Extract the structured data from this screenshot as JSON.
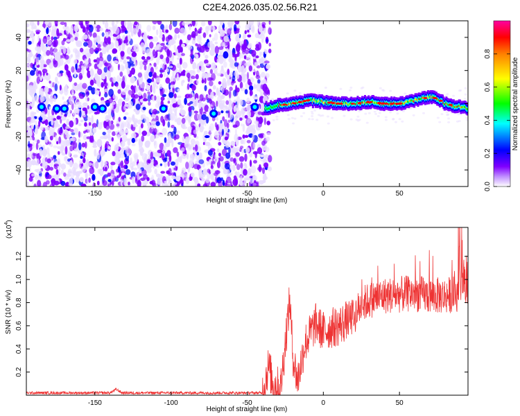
{
  "title": "C2E4.2026.035.02.56.R21",
  "chart_data": [
    {
      "type": "heatmap",
      "xlabel": "Height of straight line (km)",
      "ylabel": "Frequency (Hz)",
      "xlim": [
        -195,
        95
      ],
      "ylim": [
        -50,
        50
      ],
      "xticks": [
        -150,
        -100,
        -50,
        0,
        50
      ],
      "yticks": [
        -40,
        -20,
        0,
        20,
        40
      ],
      "colorbar": {
        "label": "Normalized spectral amplitude",
        "range": [
          0,
          1
        ],
        "ticks": [
          "0.0",
          "0.2",
          "0.4",
          "0.6",
          "0.8"
        ]
      },
      "colormap": [
        "#e8dcff",
        "#8000ff",
        "#0000ff",
        "#00ffff",
        "#00ff00",
        "#ffff00",
        "#ff8000",
        "#ff0000",
        "#ff00ff"
      ],
      "noise_region_end_km": -35,
      "signal_track": [
        [
          -38,
          -3
        ],
        [
          -30,
          -1
        ],
        [
          -20,
          0
        ],
        [
          -10,
          2
        ],
        [
          0,
          1
        ],
        [
          10,
          0
        ],
        [
          20,
          0
        ],
        [
          30,
          1
        ],
        [
          40,
          0
        ],
        [
          50,
          0
        ],
        [
          60,
          2
        ],
        [
          70,
          4
        ],
        [
          75,
          3
        ],
        [
          80,
          0
        ],
        [
          90,
          -2
        ],
        [
          95,
          -3
        ]
      ],
      "noise_blobs": [
        {
          "x": -185,
          "y": -2
        },
        {
          "x": -175,
          "y": -3
        },
        {
          "x": -170,
          "y": -3
        },
        {
          "x": -150,
          "y": -2
        },
        {
          "x": -145,
          "y": -3
        },
        {
          "x": -105,
          "y": -3
        },
        {
          "x": -72,
          "y": -6
        },
        {
          "x": -45,
          "y": -2
        }
      ]
    },
    {
      "type": "line",
      "xlabel": "Height of straight line (km)",
      "ylabel": "SNR (10 * v/v)",
      "multiplier": "(x10",
      "multiplier_exp": "4",
      "multiplier_close": ")",
      "xlim": [
        -195,
        95
      ],
      "ylim": [
        0,
        1.45
      ],
      "xticks": [
        -150,
        -100,
        -50,
        0,
        50
      ],
      "yticks": [
        "0.2",
        "0.4",
        "0.6",
        "0.8",
        "1.0",
        "1.2"
      ],
      "color": "#ee3333",
      "envelope": [
        [
          -195,
          0.02
        ],
        [
          -140,
          0.02
        ],
        [
          -136,
          0.05
        ],
        [
          -132,
          0.02
        ],
        [
          -40,
          0.02
        ],
        [
          -36,
          0.25
        ],
        [
          -33,
          0.1
        ],
        [
          -28,
          0.06
        ],
        [
          -24,
          0.58
        ],
        [
          -22,
          0.82
        ],
        [
          -20,
          0.35
        ],
        [
          -17,
          0.12
        ],
        [
          -12,
          0.45
        ],
        [
          -5,
          0.62
        ],
        [
          0,
          0.55
        ],
        [
          5,
          0.58
        ],
        [
          10,
          0.6
        ],
        [
          20,
          0.68
        ],
        [
          25,
          0.78
        ],
        [
          30,
          0.82
        ],
        [
          40,
          0.86
        ],
        [
          50,
          0.87
        ],
        [
          60,
          0.88
        ],
        [
          70,
          0.86
        ],
        [
          80,
          0.86
        ],
        [
          88,
          0.88
        ],
        [
          92,
          1.05
        ],
        [
          95,
          0.85
        ]
      ]
    }
  ]
}
